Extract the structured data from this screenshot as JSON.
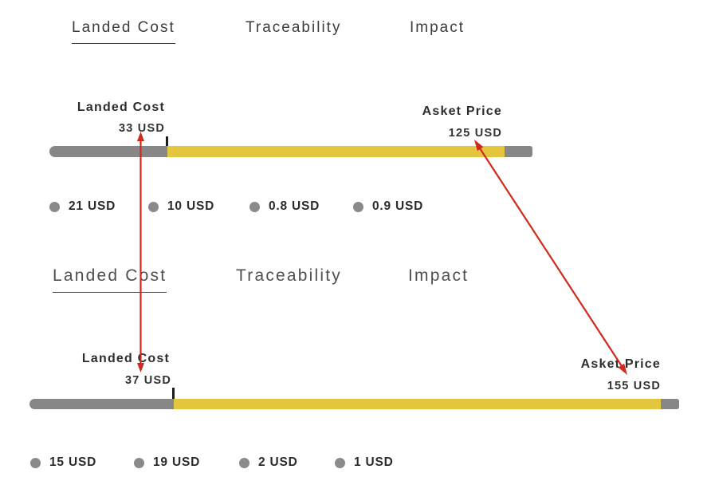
{
  "colors": {
    "brand_yellow": "#E4C63E",
    "bar_gray": "#878787",
    "dot_gray": "#8A8A8A",
    "arrow_red": "#D2291D",
    "tick_black": "#1C1C1C"
  },
  "sections": [
    {
      "tabs": [
        {
          "label": "Landed Cost",
          "active": true
        },
        {
          "label": "Traceability",
          "active": false
        },
        {
          "label": "Impact",
          "active": false
        }
      ],
      "landed_cost_label": "Landed Cost",
      "landed_cost_value": "33 USD",
      "asket_price_label": "Asket Price",
      "asket_price_value": "125 USD",
      "bar": {
        "segments": [
          {
            "name": "landed-cost-portion",
            "pct": 24.4
          },
          {
            "name": "margin-portion",
            "pct": 69.8
          },
          {
            "name": "end-cap",
            "pct": 5.8
          }
        ]
      },
      "legend": [
        {
          "label": "21 USD"
        },
        {
          "label": "10 USD"
        },
        {
          "label": "0.8 USD"
        },
        {
          "label": "0.9 USD"
        }
      ]
    },
    {
      "tabs": [
        {
          "label": "Landed Cost",
          "active": true
        },
        {
          "label": "Traceability",
          "active": false
        },
        {
          "label": "Impact",
          "active": false
        }
      ],
      "landed_cost_label": "Landed Cost",
      "landed_cost_value": "37 USD",
      "asket_price_label": "Asket Price",
      "asket_price_value": "155 USD",
      "bar": {
        "segments": [
          {
            "name": "landed-cost-portion",
            "pct": 22.2
          },
          {
            "name": "margin-portion",
            "pct": 75.0
          },
          {
            "name": "end-cap",
            "pct": 2.8
          }
        ]
      },
      "legend": [
        {
          "label": "15 USD"
        },
        {
          "label": "19 USD"
        },
        {
          "label": "2 USD"
        },
        {
          "label": "1 USD"
        }
      ]
    }
  ],
  "annotations": {
    "arrows": [
      {
        "name": "landed-cost-comparison-arrow",
        "from": "33 USD",
        "to": "37 USD"
      },
      {
        "name": "asket-price-comparison-arrow",
        "from": "125 USD",
        "to": "155 USD"
      }
    ]
  }
}
